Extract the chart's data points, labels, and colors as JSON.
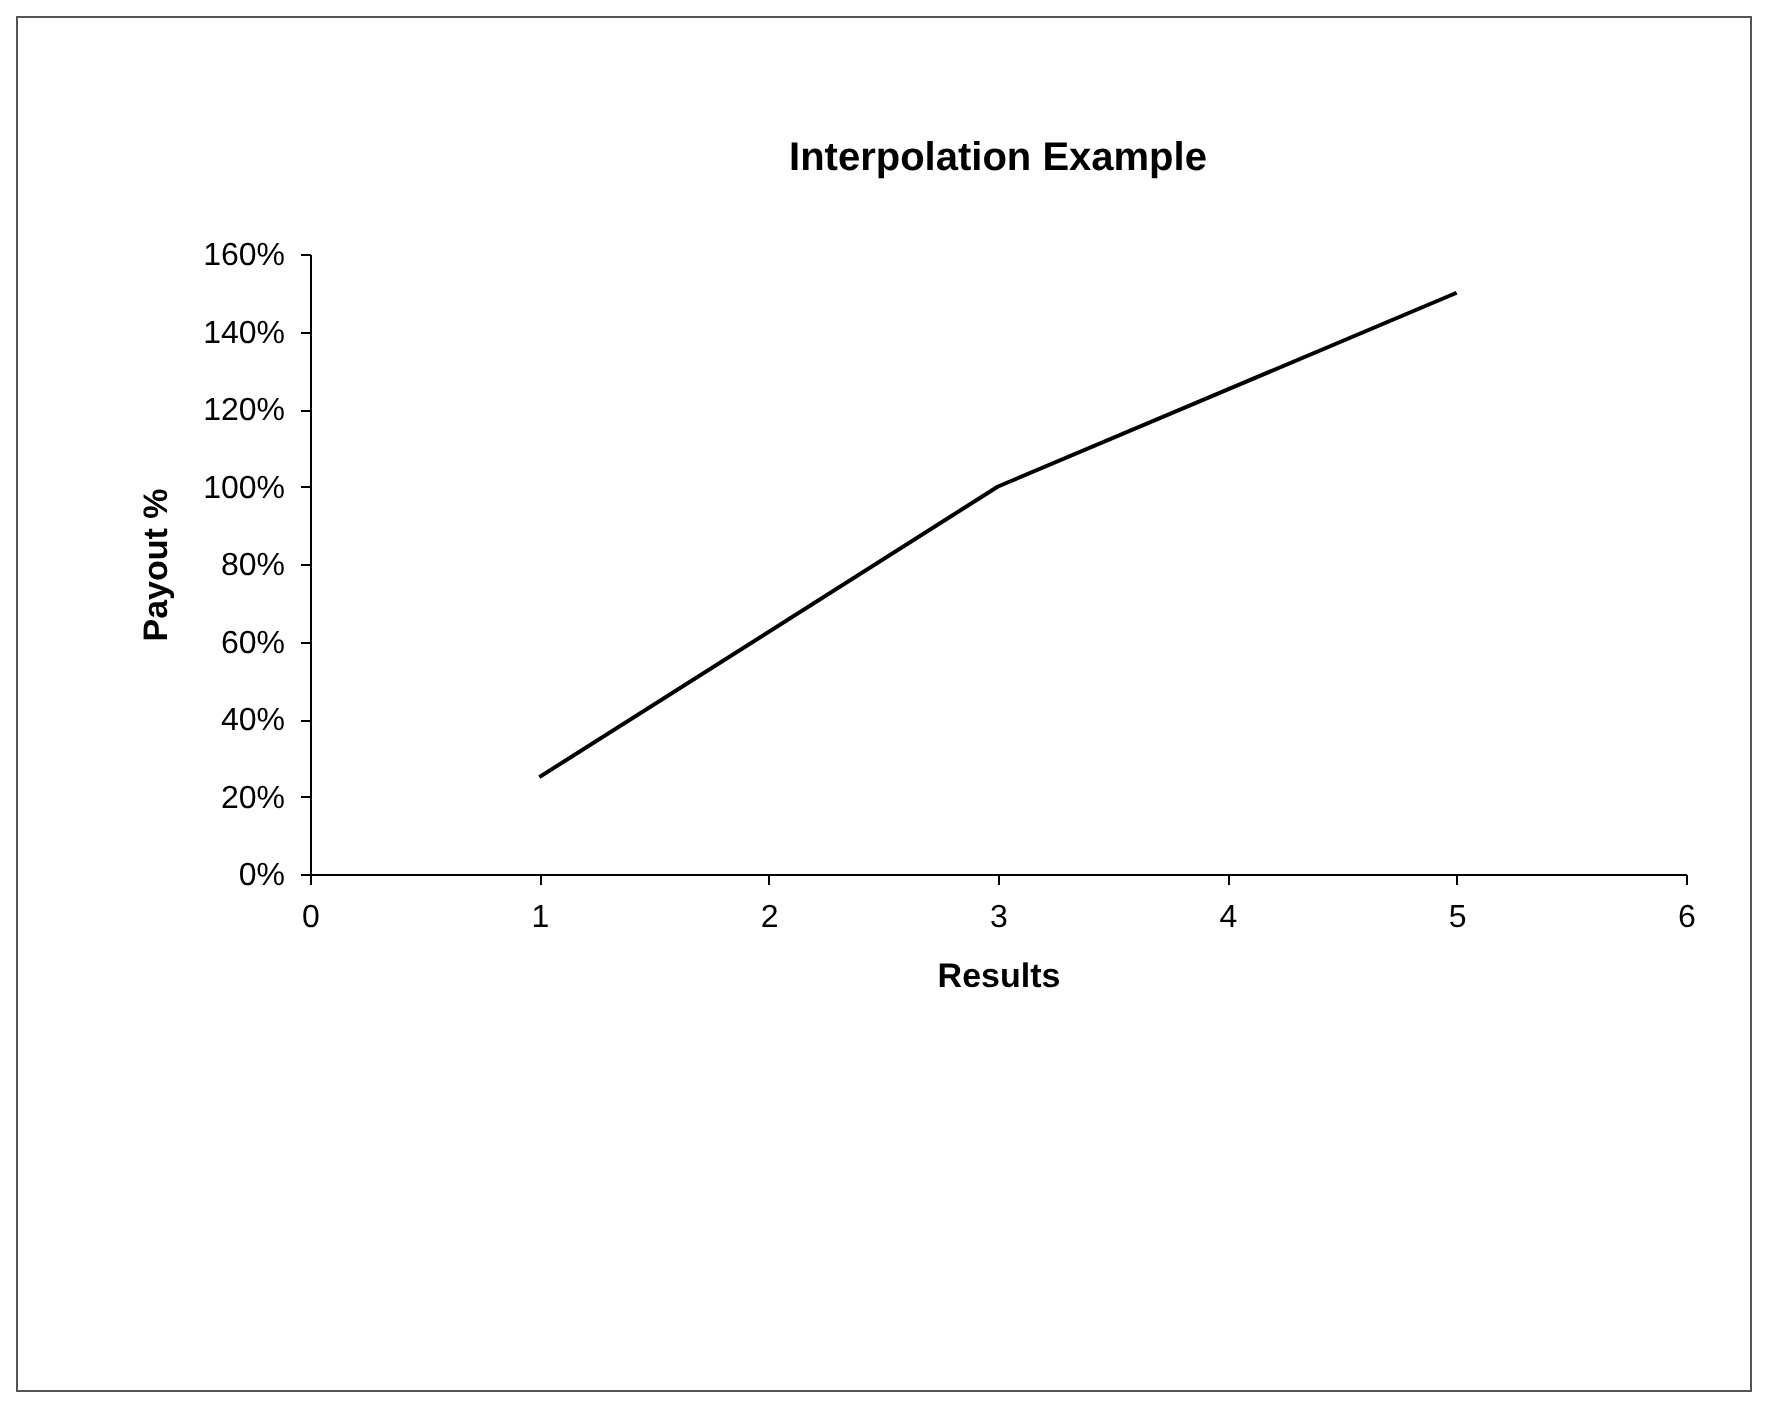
{
  "chart_data": {
    "type": "line",
    "title": "Interpolation Example",
    "xlabel": "Results",
    "ylabel": "Payout %",
    "x": [
      1,
      3,
      5
    ],
    "series": [
      {
        "color": "#000000",
        "values": [
          25,
          100,
          150
        ]
      }
    ],
    "xlim": [
      0,
      6
    ],
    "xticks": [
      0,
      1,
      2,
      3,
      4,
      5,
      6
    ],
    "ylim": [
      0,
      160
    ],
    "yticks": [
      {
        "value": 0,
        "label": "0%"
      },
      {
        "value": 20,
        "label": "20%"
      },
      {
        "value": 40,
        "label": "40%"
      },
      {
        "value": 60,
        "label": "60%"
      },
      {
        "value": 80,
        "label": "80%"
      },
      {
        "value": 100,
        "label": "100%"
      },
      {
        "value": 120,
        "label": "120%"
      },
      {
        "value": 140,
        "label": "140%"
      },
      {
        "value": 160,
        "label": "160%"
      }
    ],
    "grid": false,
    "legend": false,
    "marker": "none",
    "line_style": "solid"
  }
}
